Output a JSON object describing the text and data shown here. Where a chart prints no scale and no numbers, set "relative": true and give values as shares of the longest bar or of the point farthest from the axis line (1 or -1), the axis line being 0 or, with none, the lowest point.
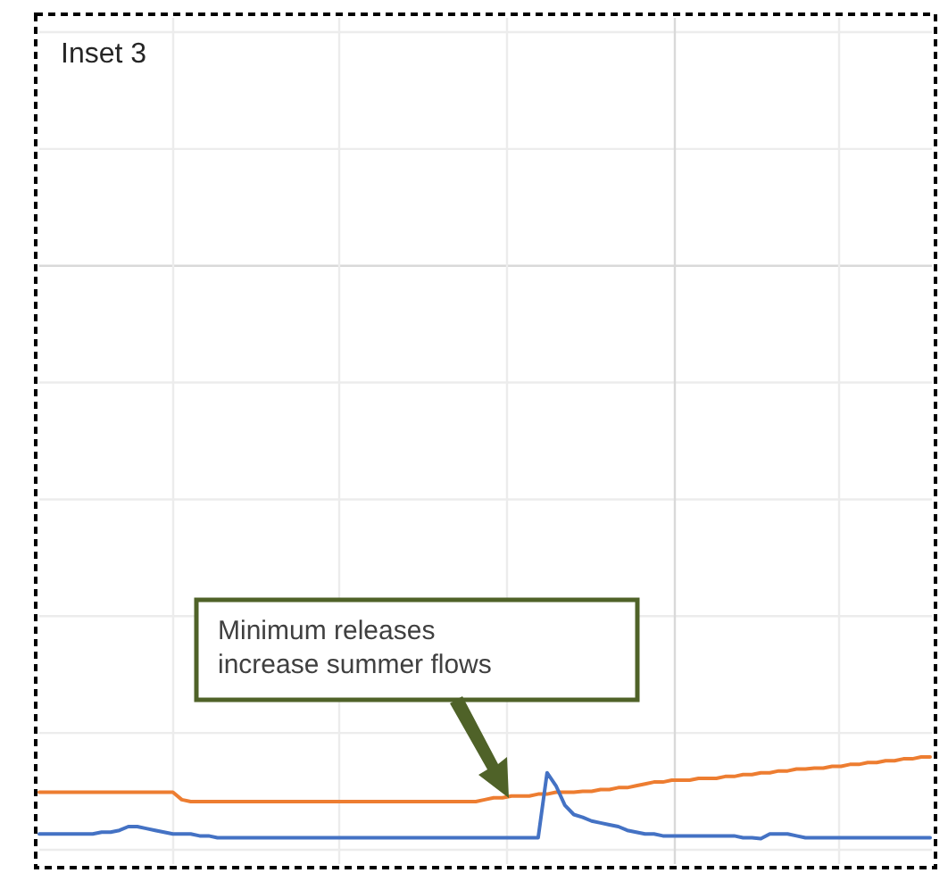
{
  "chart_data": {
    "type": "line",
    "title": "Inset 3",
    "relative": true,
    "grid": true,
    "marker": "none",
    "line_style": "solid",
    "categories": [
      null,
      null,
      null,
      null,
      null,
      null,
      null,
      null,
      null,
      null,
      null,
      null,
      null,
      null,
      null,
      null,
      null,
      null,
      null,
      null,
      null,
      null,
      null,
      null,
      null,
      null,
      null,
      null,
      null,
      null,
      null,
      null,
      null,
      null,
      null,
      null,
      null,
      null,
      null,
      null,
      null,
      null,
      null,
      null,
      null,
      null,
      null,
      null,
      null,
      null,
      null,
      null,
      null,
      null,
      null,
      null,
      null,
      null,
      null,
      null,
      null,
      null,
      null,
      null,
      null,
      null,
      null,
      null,
      null,
      null,
      null,
      null,
      null,
      null,
      null,
      null,
      null,
      null,
      null,
      null,
      null,
      null,
      null,
      null,
      null,
      null,
      null,
      null,
      null,
      null,
      null,
      null,
      null,
      null,
      null,
      null,
      null,
      null,
      null,
      null,
      null
    ],
    "series": [
      {
        "color": "#ed7d31",
        "values": [
          0.62,
          0.62,
          0.62,
          0.62,
          0.62,
          0.62,
          0.62,
          0.62,
          0.62,
          0.62,
          0.62,
          0.62,
          0.62,
          0.62,
          0.62,
          0.62,
          0.54,
          0.52,
          0.52,
          0.52,
          0.52,
          0.52,
          0.52,
          0.52,
          0.52,
          0.52,
          0.52,
          0.52,
          0.52,
          0.52,
          0.52,
          0.52,
          0.52,
          0.52,
          0.52,
          0.52,
          0.52,
          0.52,
          0.52,
          0.52,
          0.52,
          0.52,
          0.52,
          0.52,
          0.52,
          0.52,
          0.52,
          0.52,
          0.52,
          0.52,
          0.54,
          0.56,
          0.56,
          0.58,
          0.58,
          0.58,
          0.6,
          0.6,
          0.62,
          0.62,
          0.62,
          0.63,
          0.63,
          0.65,
          0.65,
          0.67,
          0.67,
          0.69,
          0.71,
          0.73,
          0.73,
          0.75,
          0.75,
          0.75,
          0.77,
          0.77,
          0.77,
          0.79,
          0.79,
          0.81,
          0.81,
          0.83,
          0.83,
          0.85,
          0.85,
          0.87,
          0.87,
          0.88,
          0.88,
          0.9,
          0.9,
          0.92,
          0.92,
          0.94,
          0.94,
          0.96,
          0.96,
          0.98,
          0.98,
          1,
          1
        ]
      },
      {
        "color": "#4472c4",
        "values": [
          0.17,
          0.17,
          0.17,
          0.17,
          0.17,
          0.17,
          0.17,
          0.19,
          0.19,
          0.21,
          0.25,
          0.25,
          0.23,
          0.21,
          0.19,
          0.17,
          0.17,
          0.17,
          0.15,
          0.15,
          0.13,
          0.13,
          0.13,
          0.13,
          0.13,
          0.13,
          0.13,
          0.13,
          0.13,
          0.13,
          0.13,
          0.13,
          0.13,
          0.13,
          0.13,
          0.13,
          0.13,
          0.13,
          0.13,
          0.13,
          0.13,
          0.13,
          0.13,
          0.13,
          0.13,
          0.13,
          0.13,
          0.13,
          0.13,
          0.13,
          0.13,
          0.13,
          0.13,
          0.13,
          0.13,
          0.13,
          0.13,
          0.83,
          0.69,
          0.48,
          0.38,
          0.35,
          0.31,
          0.29,
          0.27,
          0.25,
          0.21,
          0.19,
          0.17,
          0.17,
          0.15,
          0.15,
          0.15,
          0.15,
          0.15,
          0.15,
          0.15,
          0.15,
          0.15,
          0.13,
          0.13,
          0.12,
          0.17,
          0.17,
          0.17,
          0.15,
          0.13,
          0.13,
          0.13,
          0.13,
          0.13,
          0.13,
          0.13,
          0.13,
          0.13,
          0.13,
          0.13,
          0.13,
          0.13,
          0.13,
          0.13
        ]
      }
    ],
    "annotations": [
      "Minimum releases\nincrease summer flows"
    ]
  }
}
